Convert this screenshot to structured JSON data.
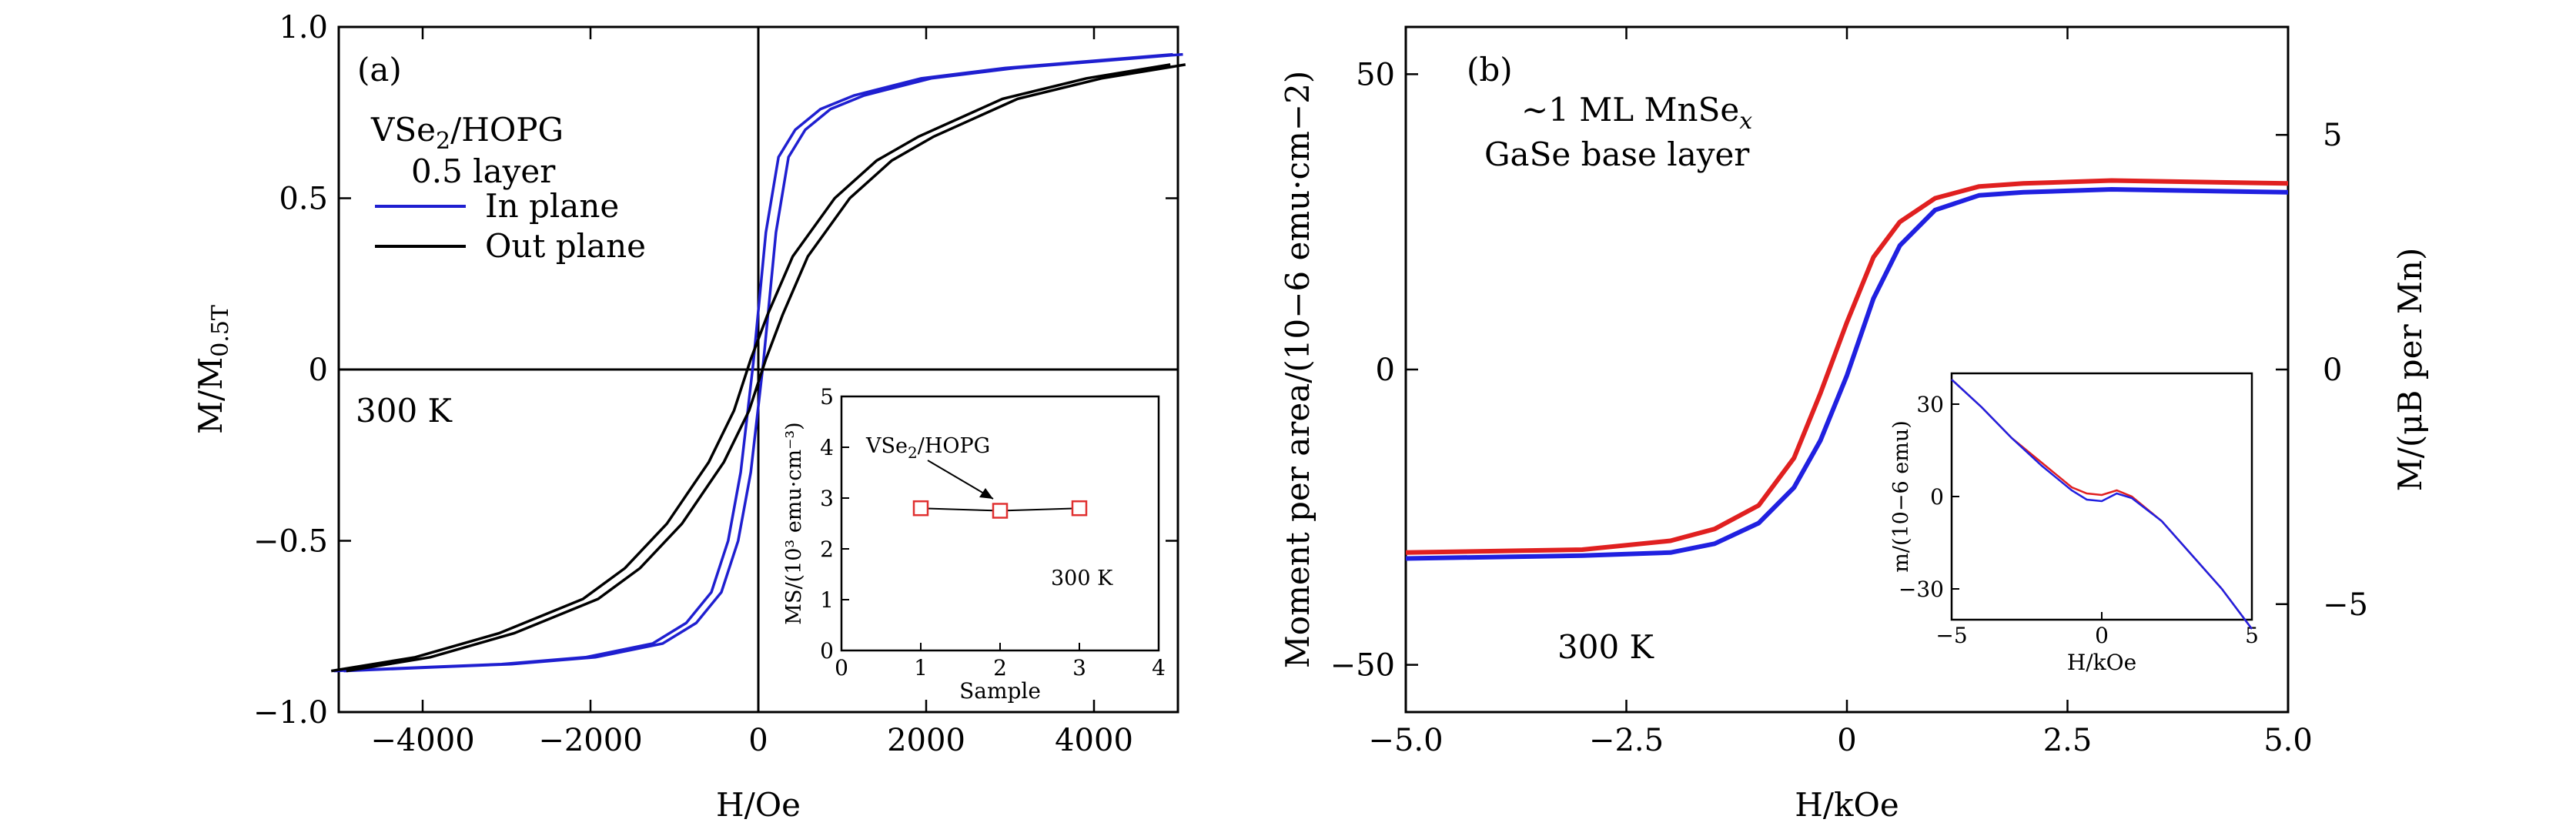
{
  "chart_data": [
    {
      "type": "line",
      "panel_label": "(a)",
      "xlabel": "H/Oe",
      "ylabel": "M/M0.5T",
      "xlim": [
        -5000,
        5000
      ],
      "ylim": [
        -1.0,
        1.0
      ],
      "xticks": [
        "−4000",
        "−2000",
        "0",
        "2000",
        "4000"
      ],
      "xtick_values": [
        -4000,
        -2000,
        0,
        2000,
        4000
      ],
      "yticks": [
        "−1.0",
        "−0.5",
        "0",
        "0.5",
        "1.0"
      ],
      "ytick_values": [
        -1.0,
        -0.5,
        0,
        0.5,
        1.0
      ],
      "annotations": {
        "sample": "VSe2/HOPG",
        "coverage": "0.5 layer",
        "temperature": "300 K"
      },
      "legend_position": "top-left",
      "series": [
        {
          "name": "In plane",
          "color": "#1f1fd0",
          "x": [
            -5000,
            -4000,
            -3000,
            -2000,
            -1200,
            -800,
            -500,
            -300,
            -150,
            0,
            150,
            300,
            500,
            800,
            1200,
            2000,
            3000,
            4000,
            5000
          ],
          "y": [
            -0.88,
            -0.87,
            -0.86,
            -0.84,
            -0.8,
            -0.74,
            -0.65,
            -0.5,
            -0.3,
            0.02,
            0.4,
            0.62,
            0.7,
            0.76,
            0.8,
            0.85,
            0.88,
            0.9,
            0.92
          ]
        },
        {
          "name": "Out plane",
          "color": "#000000",
          "x": [
            -5000,
            -4000,
            -3000,
            -2000,
            -1500,
            -1000,
            -500,
            -200,
            0,
            200,
            500,
            1000,
            1500,
            2000,
            3000,
            4000,
            5000
          ],
          "y": [
            -0.88,
            -0.84,
            -0.77,
            -0.67,
            -0.58,
            -0.45,
            -0.27,
            -0.12,
            0.03,
            0.16,
            0.33,
            0.5,
            0.61,
            0.68,
            0.79,
            0.85,
            0.89
          ]
        }
      ],
      "inset": {
        "type": "scatter",
        "xlabel": "Sample",
        "ylabel": "MS/(10³ emu·cm⁻³)",
        "xlim": [
          0,
          4
        ],
        "ylim": [
          0,
          5
        ],
        "xticks": [
          "0",
          "1",
          "2",
          "3",
          "4"
        ],
        "yticks": [
          "0",
          "1",
          "2",
          "3",
          "4",
          "5"
        ],
        "annotation": "VSe2/HOPG",
        "temperature": "300 K",
        "marker_color": "#e03030",
        "x": [
          1,
          2,
          3
        ],
        "y": [
          2.8,
          2.75,
          2.8
        ]
      }
    },
    {
      "type": "line",
      "panel_label": "(b)",
      "xlabel": "H/kOe",
      "ylabel": "Moment per area/(10−6 emu·cm−2)",
      "y2label": "M/(μB per Mn)",
      "xlim": [
        -5.0,
        5.0
      ],
      "ylim": [
        -58,
        58
      ],
      "xticks": [
        "−5.0",
        "−2.5",
        "0",
        "2.5",
        "5.0"
      ],
      "xtick_values": [
        -5.0,
        -2.5,
        0,
        2.5,
        5.0
      ],
      "yticks": [
        "−50",
        "0",
        "50"
      ],
      "ytick_values": [
        -50,
        0,
        50
      ],
      "y2ticks": [
        "−5",
        "0",
        "5"
      ],
      "y2tick_values": [
        -5,
        0,
        5
      ],
      "y2lim": [
        -7.3,
        7.3
      ],
      "annotations": {
        "material": "~1 ML MnSe",
        "material_sub": "x",
        "base": "GaSe base layer",
        "temperature": "300 K"
      },
      "series": [
        {
          "color": "#e02020",
          "x": [
            -5.0,
            -3.0,
            -2.0,
            -1.5,
            -1.0,
            -0.6,
            -0.3,
            0.0,
            0.3,
            0.6,
            1.0,
            1.5,
            2.0,
            3.0,
            5.0
          ],
          "y": [
            -31,
            -30.5,
            -29,
            -27,
            -23,
            -15,
            -4,
            8,
            19,
            25,
            29,
            31,
            31.5,
            32,
            31.5
          ]
        },
        {
          "color": "#2020e0",
          "x": [
            -5.0,
            -3.0,
            -2.0,
            -1.5,
            -1.0,
            -0.6,
            -0.3,
            0.0,
            0.3,
            0.6,
            1.0,
            1.5,
            2.0,
            3.0,
            5.0
          ],
          "y": [
            -32,
            -31.5,
            -31,
            -29.5,
            -26,
            -20,
            -12,
            -1,
            12,
            21,
            27,
            29.5,
            30,
            30.5,
            30
          ]
        }
      ],
      "inset": {
        "type": "line",
        "xlabel": "H/kOe",
        "ylabel": "m/(10−6 emu)",
        "xlim": [
          -5,
          5
        ],
        "ylim": [
          -40,
          40
        ],
        "xticks": [
          "−5",
          "0",
          "5"
        ],
        "yticks": [
          "30",
          "0",
          "−30"
        ],
        "ytick_values": [
          30,
          0,
          -30
        ],
        "series": [
          {
            "color": "#e02020",
            "x": [
              -5,
              -4,
              -3,
              -2,
              -1,
              -0.5,
              0,
              0.5,
              1,
              2,
              3,
              4,
              5
            ],
            "y": [
              38,
              29,
              19,
              11,
              3,
              1,
              0.5,
              2,
              0,
              -8,
              -19,
              -30,
              -43
            ]
          },
          {
            "color": "#2020e0",
            "x": [
              -5,
              -4,
              -3,
              -2,
              -1,
              -0.5,
              0,
              0.5,
              1,
              2,
              3,
              4,
              5
            ],
            "y": [
              38,
              29,
              19,
              10,
              2,
              -1,
              -1.5,
              1,
              -0.5,
              -8,
              -19,
              -30,
              -43
            ]
          }
        ]
      }
    }
  ]
}
